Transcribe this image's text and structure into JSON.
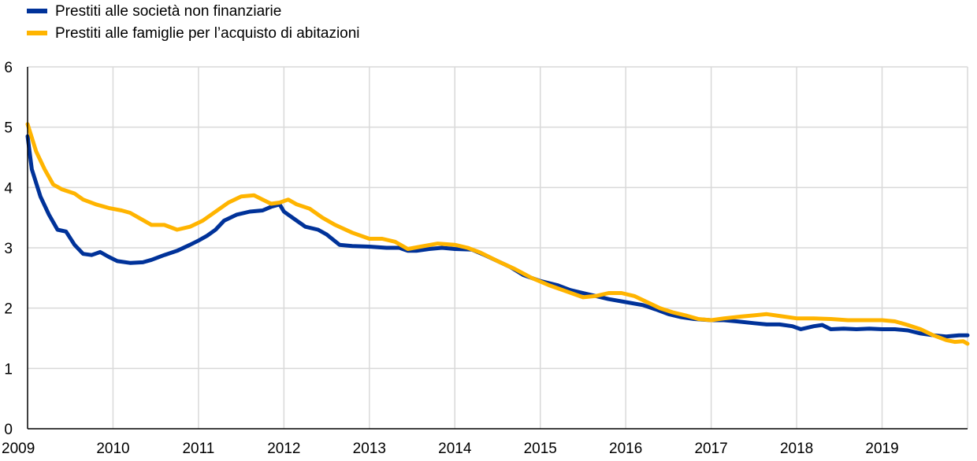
{
  "chart_data": {
    "type": "line",
    "title": "",
    "xlabel": "",
    "ylabel": "",
    "xlim": [
      2009,
      2020
    ],
    "ylim": [
      0,
      6
    ],
    "grid": true,
    "legend_position": "top-left",
    "x_ticks": [
      "2009",
      "2010",
      "2011",
      "2012",
      "2013",
      "2014",
      "2015",
      "2016",
      "2017",
      "2018",
      "2019"
    ],
    "y_ticks": [
      "0",
      "1",
      "2",
      "3",
      "4",
      "5",
      "6"
    ],
    "colors": {
      "grid": "#d9d9d9",
      "axis": "#000000"
    },
    "series": [
      {
        "name": "Prestiti alle società non finanziarie",
        "color": "#003299",
        "x": [
          2009.0,
          2009.05,
          2009.15,
          2009.25,
          2009.35,
          2009.45,
          2009.55,
          2009.65,
          2009.75,
          2009.85,
          2009.95,
          2010.05,
          2010.2,
          2010.35,
          2010.45,
          2010.6,
          2010.75,
          2010.9,
          2011.0,
          2011.1,
          2011.2,
          2011.3,
          2011.45,
          2011.6,
          2011.75,
          2011.85,
          2011.95,
          2012.0,
          2012.1,
          2012.25,
          2012.4,
          2012.5,
          2012.65,
          2012.8,
          2013.0,
          2013.2,
          2013.35,
          2013.45,
          2013.55,
          2013.7,
          2013.85,
          2014.0,
          2014.2,
          2014.35,
          2014.5,
          2014.65,
          2014.8,
          2015.0,
          2015.2,
          2015.35,
          2015.5,
          2015.65,
          2015.8,
          2016.0,
          2016.2,
          2016.35,
          2016.5,
          2016.65,
          2016.8,
          2017.0,
          2017.15,
          2017.3,
          2017.5,
          2017.65,
          2017.8,
          2017.95,
          2018.05,
          2018.2,
          2018.3,
          2018.4,
          2018.55,
          2018.7,
          2018.85,
          2019.0,
          2019.15,
          2019.3,
          2019.45,
          2019.6,
          2019.75,
          2019.9,
          2020.0
        ],
        "values": [
          4.85,
          4.3,
          3.85,
          3.55,
          3.3,
          3.27,
          3.05,
          2.9,
          2.88,
          2.93,
          2.85,
          2.78,
          2.75,
          2.76,
          2.8,
          2.88,
          2.95,
          3.05,
          3.12,
          3.2,
          3.3,
          3.45,
          3.55,
          3.6,
          3.62,
          3.68,
          3.72,
          3.6,
          3.5,
          3.35,
          3.3,
          3.22,
          3.05,
          3.03,
          3.02,
          3.0,
          3.0,
          2.95,
          2.95,
          2.98,
          3.0,
          2.98,
          2.97,
          2.88,
          2.78,
          2.68,
          2.55,
          2.45,
          2.38,
          2.3,
          2.25,
          2.2,
          2.15,
          2.1,
          2.05,
          1.98,
          1.9,
          1.85,
          1.82,
          1.8,
          1.8,
          1.78,
          1.75,
          1.73,
          1.73,
          1.7,
          1.65,
          1.7,
          1.72,
          1.65,
          1.66,
          1.65,
          1.66,
          1.65,
          1.65,
          1.63,
          1.58,
          1.55,
          1.53,
          1.55,
          1.55
        ]
      },
      {
        "name": "Prestiti alle famiglie per l’acquisto di abitazioni",
        "color": "#ffb400",
        "x": [
          2009.0,
          2009.1,
          2009.2,
          2009.3,
          2009.4,
          2009.55,
          2009.65,
          2009.8,
          2009.95,
          2010.1,
          2010.2,
          2010.3,
          2010.45,
          2010.6,
          2010.75,
          2010.9,
          2011.05,
          2011.2,
          2011.35,
          2011.5,
          2011.65,
          2011.75,
          2011.85,
          2011.95,
          2012.05,
          2012.15,
          2012.3,
          2012.45,
          2012.6,
          2012.8,
          2013.0,
          2013.15,
          2013.3,
          2013.45,
          2013.6,
          2013.8,
          2014.0,
          2014.15,
          2014.3,
          2014.5,
          2014.7,
          2014.9,
          2015.1,
          2015.3,
          2015.5,
          2015.65,
          2015.8,
          2015.95,
          2016.1,
          2016.25,
          2016.4,
          2016.55,
          2016.7,
          2016.85,
          2017.0,
          2017.15,
          2017.35,
          2017.5,
          2017.65,
          2017.8,
          2018.0,
          2018.2,
          2018.4,
          2018.6,
          2018.8,
          2019.0,
          2019.15,
          2019.3,
          2019.45,
          2019.6,
          2019.75,
          2019.85,
          2019.95,
          2020.0
        ],
        "values": [
          5.05,
          4.6,
          4.3,
          4.05,
          3.97,
          3.9,
          3.8,
          3.72,
          3.66,
          3.62,
          3.58,
          3.5,
          3.38,
          3.38,
          3.3,
          3.35,
          3.45,
          3.6,
          3.75,
          3.85,
          3.87,
          3.8,
          3.73,
          3.75,
          3.8,
          3.72,
          3.65,
          3.5,
          3.38,
          3.25,
          3.15,
          3.15,
          3.1,
          2.98,
          3.02,
          3.07,
          3.05,
          3.0,
          2.92,
          2.78,
          2.65,
          2.5,
          2.38,
          2.28,
          2.18,
          2.2,
          2.25,
          2.25,
          2.2,
          2.1,
          2.0,
          1.93,
          1.88,
          1.82,
          1.8,
          1.83,
          1.86,
          1.88,
          1.9,
          1.87,
          1.83,
          1.83,
          1.82,
          1.8,
          1.8,
          1.8,
          1.78,
          1.72,
          1.65,
          1.55,
          1.47,
          1.44,
          1.45,
          1.41
        ]
      }
    ]
  }
}
